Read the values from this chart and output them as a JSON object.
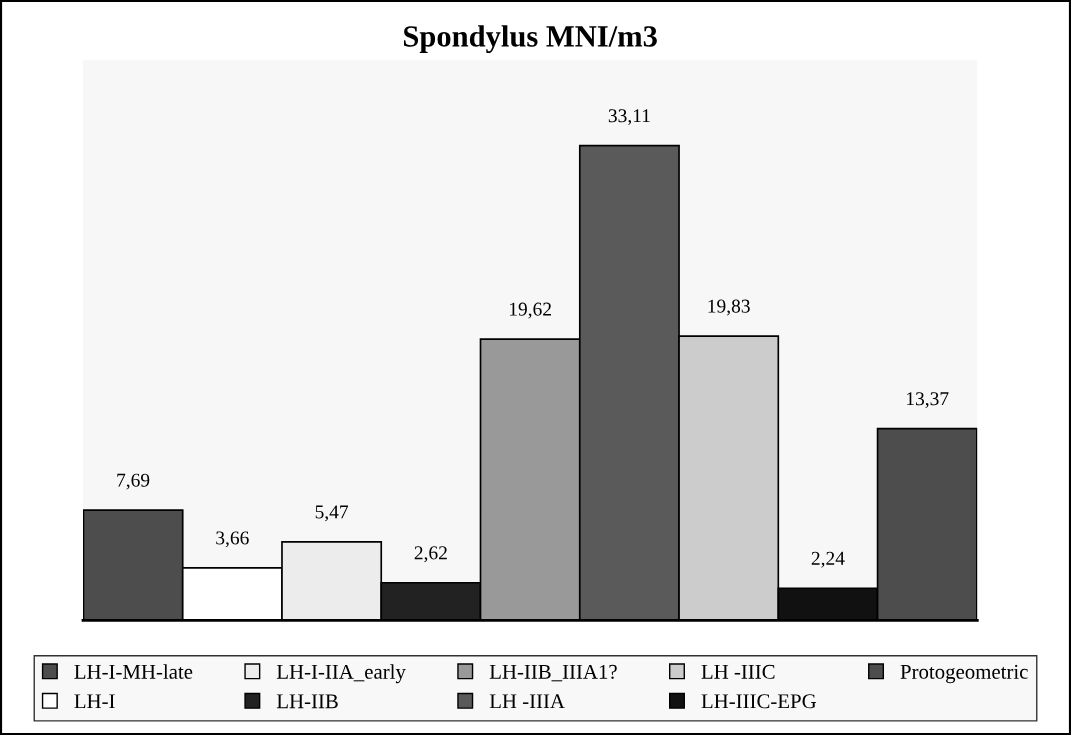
{
  "chart_data": {
    "type": "bar",
    "title": "Spondylus MNI/m3",
    "categories": [
      null
    ],
    "series": [
      {
        "name": "LH-I-MH-late",
        "color": "#4d4d4d",
        "values": [
          7.69
        ],
        "value_labels": [
          "7,69"
        ]
      },
      {
        "name": "LH-I",
        "color": "#ffffff",
        "values": [
          3.66
        ],
        "value_labels": [
          "3,66"
        ]
      },
      {
        "name": "LH-I-IIA_early",
        "color": "#ececec",
        "values": [
          5.47
        ],
        "value_labels": [
          "5,47"
        ]
      },
      {
        "name": "LH-IIB",
        "color": "#222222",
        "values": [
          2.62
        ],
        "value_labels": [
          "2,62"
        ]
      },
      {
        "name": "LH-IIB_IIIA1?",
        "color": "#999999",
        "values": [
          19.62
        ],
        "value_labels": [
          "19,62"
        ]
      },
      {
        "name": "LH -IIIA",
        "color": "#5a5a5a",
        "values": [
          33.11
        ],
        "value_labels": [
          "33,11"
        ]
      },
      {
        "name": "LH -IIIC",
        "color": "#cccccc",
        "values": [
          19.83
        ],
        "value_labels": [
          "19,83"
        ]
      },
      {
        "name": "LH-IIIC-EPG",
        "color": "#111111",
        "values": [
          2.24
        ],
        "value_labels": [
          "2,24"
        ]
      },
      {
        "name": "Protogeometric",
        "color": "#4d4d4d",
        "values": [
          13.37
        ],
        "value_labels": [
          "13,37"
        ]
      }
    ],
    "legend": "bottom",
    "grid": false
  }
}
